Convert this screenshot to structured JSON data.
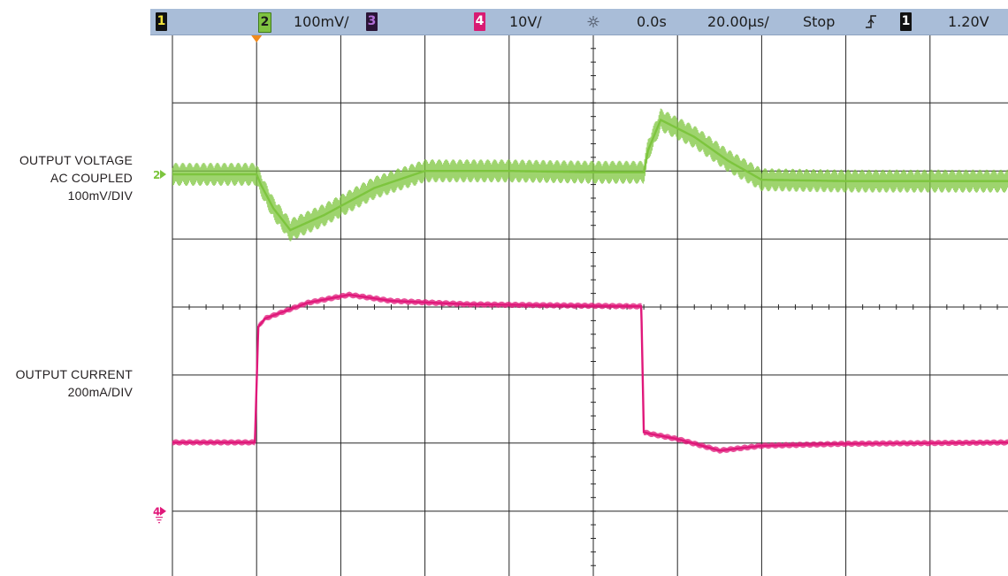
{
  "status_bar": {
    "ch1_label": "1",
    "ch2_label": "2",
    "ch2_scale": "100mV/",
    "ch3_label": "3",
    "ch4_label": "4",
    "ch4_scale": "10V/",
    "trigger_icon": "trigger-burst-icon",
    "delay": "0.0s",
    "timebase": "20.00µs/",
    "run_state": "Stop",
    "trigger_edge_icon": "rising-edge-icon",
    "trigger_source": "1",
    "trigger_level": "1.20V"
  },
  "side_labels": {
    "voltage_line1": "OUTPUT VOLTAGE",
    "voltage_line2": "AC COUPLED",
    "voltage_line3": "100mV/DIV",
    "current_line1": "OUTPUT CURRENT",
    "current_line2": "200mA/DIV"
  },
  "markers": {
    "ch2_marker": "2",
    "ch4_marker": "4"
  },
  "colors": {
    "voltage_trace": "#7dc53e",
    "current_trace": "#e0187a",
    "grid": "#262626",
    "status_bar": "#a9bdd8",
    "trigger_marker": "#f08a1c"
  },
  "chart_data": {
    "type": "line",
    "title": "",
    "grid": true,
    "x_divisions": 10,
    "y_divisions": 8,
    "time_per_division_us": 20,
    "series": [
      {
        "name": "OUTPUT VOLTAGE",
        "unit_per_div": "100mV",
        "x": [
          0,
          1.0,
          1.05,
          1.2,
          1.4,
          1.8,
          2.4,
          3.0,
          4.0,
          5.0,
          5.6,
          5.65,
          5.8,
          6.2,
          6.6,
          7.0,
          8.0,
          9.0,
          10.0
        ],
        "y": [
          0,
          0,
          -0.15,
          -0.5,
          -0.82,
          -0.6,
          -0.2,
          0.05,
          0.05,
          0.03,
          0.03,
          0.35,
          0.8,
          0.55,
          0.2,
          -0.08,
          -0.1,
          -0.1,
          -0.1
        ]
      },
      {
        "name": "OUTPUT CURRENT",
        "unit_per_div": "200mA",
        "x": [
          0,
          0.98,
          1.02,
          1.1,
          1.6,
          2.1,
          2.6,
          3.5,
          5.5,
          5.57,
          5.6,
          5.7,
          6.0,
          6.5,
          7.0,
          8.0,
          10.0
        ],
        "y": [
          0,
          0,
          1.7,
          1.82,
          2.05,
          2.17,
          2.08,
          2.03,
          2.0,
          2.0,
          0.15,
          0.12,
          0.05,
          -0.12,
          -0.05,
          -0.02,
          0.0
        ]
      }
    ]
  }
}
